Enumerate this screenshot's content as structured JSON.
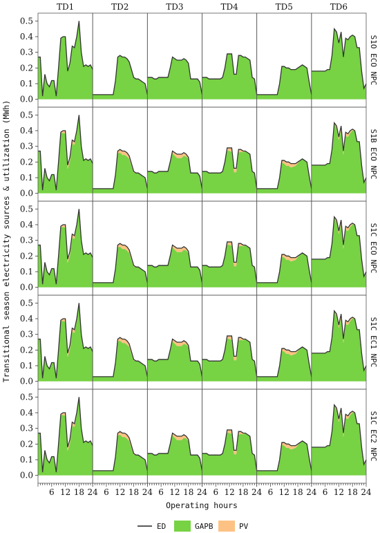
{
  "chart_data": {
    "type": "area",
    "ylabel": "Transitional season electricity sources & utilization (MWh)",
    "xlabel": "Operating hours",
    "columns": [
      "TD1",
      "TD2",
      "TD3",
      "TD4",
      "TD5",
      "TD6"
    ],
    "rows": [
      "S1O ECO NPC",
      "S1B ECO NPC",
      "S1C ECO NPC",
      "S1C EC1 NPC",
      "S1C EC2 NPC"
    ],
    "ylim": [
      -0.05,
      0.55
    ],
    "yticks": [
      "0.0",
      "0.1",
      "0.2",
      "0.3",
      "0.4",
      "0.5"
    ],
    "xticks": [
      "6",
      "12",
      "18",
      "24"
    ],
    "xlim": [
      0,
      24
    ],
    "hours": [
      1,
      2,
      3,
      4,
      5,
      6,
      7,
      8,
      9,
      10,
      11,
      12,
      13,
      14,
      15,
      16,
      17,
      18,
      19,
      20,
      21,
      22,
      23,
      24
    ],
    "ed_profiles": {
      "TD1": [
        0.27,
        0.02,
        0.16,
        0.1,
        0.08,
        0.12,
        0.12,
        0.02,
        0.2,
        0.39,
        0.4,
        0.4,
        0.18,
        0.23,
        0.34,
        0.33,
        0.4,
        0.5,
        0.3,
        0.21,
        0.22,
        0.21,
        0.22,
        0.19
      ],
      "TD2": [
        0.03,
        0.03,
        0.03,
        0.03,
        0.03,
        0.03,
        0.03,
        0.03,
        0.03,
        0.12,
        0.27,
        0.28,
        0.27,
        0.27,
        0.26,
        0.24,
        0.19,
        0.14,
        0.13,
        0.13,
        0.12,
        0.11,
        0.1,
        0.03
      ],
      "TD3": [
        0.14,
        0.14,
        0.13,
        0.13,
        0.14,
        0.14,
        0.14,
        0.14,
        0.14,
        0.2,
        0.27,
        0.26,
        0.25,
        0.25,
        0.25,
        0.26,
        0.25,
        0.23,
        0.13,
        0.13,
        0.13,
        0.13,
        0.11,
        0.03
      ],
      "TD4": [
        0.14,
        0.14,
        0.13,
        0.13,
        0.13,
        0.13,
        0.13,
        0.13,
        0.14,
        0.2,
        0.29,
        0.29,
        0.29,
        0.16,
        0.16,
        0.28,
        0.28,
        0.27,
        0.27,
        0.26,
        0.25,
        0.14,
        0.13,
        0.03
      ],
      "TD5": [
        0.03,
        0.03,
        0.03,
        0.03,
        0.03,
        0.03,
        0.03,
        0.03,
        0.03,
        0.1,
        0.21,
        0.21,
        0.2,
        0.2,
        0.19,
        0.19,
        0.19,
        0.2,
        0.21,
        0.22,
        0.21,
        0.2,
        0.11,
        0.03
      ],
      "TD6": [
        0.18,
        0.18,
        0.18,
        0.18,
        0.18,
        0.18,
        0.19,
        0.19,
        0.28,
        0.45,
        0.43,
        0.36,
        0.43,
        0.27,
        0.39,
        0.38,
        0.4,
        0.41,
        0.4,
        0.33,
        0.33,
        0.18,
        0.07,
        0.1
      ]
    },
    "pv_profile": [
      0,
      0,
      0,
      0,
      0,
      0,
      0,
      0,
      0,
      0.005,
      0.015,
      0.02,
      0.025,
      0.025,
      0.025,
      0.02,
      0.015,
      0.008,
      0,
      0,
      0,
      0,
      0,
      0
    ],
    "pv_scale_by_row": [
      0.0,
      1.0,
      1.0,
      1.0,
      1.0
    ],
    "legend": [
      {
        "name": "ED",
        "kind": "line",
        "color": "#222222"
      },
      {
        "name": "GAPB",
        "kind": "patch",
        "color": "#77d244"
      },
      {
        "name": "PV",
        "kind": "patch",
        "color": "#fdc283"
      }
    ],
    "colors": {
      "ed": "#333333",
      "gapb": "#77d244",
      "pv": "#fdc283",
      "pv_edge": "#d9534f"
    }
  }
}
